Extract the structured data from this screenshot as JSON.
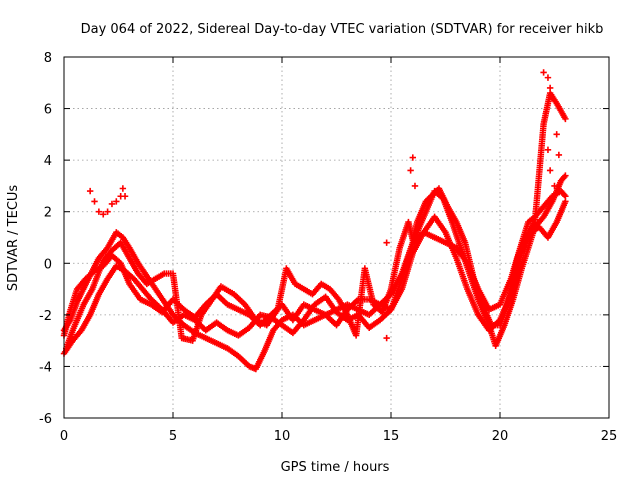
{
  "chart_data": {
    "type": "scatter",
    "title": "Day 064 of 2022, Sidereal Day-to-day VTEC variation (SDTVAR) for receiver hikb",
    "xlabel": "GPS time / hours",
    "ylabel": "SDTVAR / TECUs",
    "xlim": [
      0,
      25
    ],
    "ylim": [
      -6,
      8
    ],
    "xticks": [
      0,
      5,
      10,
      15,
      20,
      25
    ],
    "yticks": [
      -6,
      -4,
      -2,
      0,
      2,
      4,
      6,
      8
    ],
    "grid": true,
    "marker": "+",
    "color": "#ff0000",
    "series": [
      {
        "name": "track-a",
        "points": [
          [
            0,
            -2.6
          ],
          [
            0.3,
            -2.2
          ],
          [
            0.6,
            -1.5
          ],
          [
            1.0,
            -0.8
          ],
          [
            1.3,
            -0.3
          ],
          [
            1.6,
            0.2
          ],
          [
            2.0,
            0.6
          ],
          [
            2.4,
            1.2
          ],
          [
            2.7,
            1.0
          ],
          [
            3.0,
            0.6
          ],
          [
            3.4,
            0.0
          ],
          [
            3.8,
            -0.5
          ],
          [
            4.2,
            -1.0
          ],
          [
            4.6,
            -1.5
          ],
          [
            5.0,
            -2.0
          ],
          [
            5.5,
            -2.4
          ],
          [
            6.0,
            -2.7
          ],
          [
            6.5,
            -2.9
          ],
          [
            7.0,
            -3.1
          ],
          [
            7.5,
            -3.3
          ],
          [
            8.0,
            -3.6
          ],
          [
            8.5,
            -4.0
          ],
          [
            8.8,
            -4.1
          ],
          [
            9.2,
            -3.4
          ],
          [
            9.6,
            -2.6
          ],
          [
            10.0,
            -2.2
          ],
          [
            10.5,
            -2.0
          ],
          [
            11.0,
            -2.4
          ],
          [
            11.5,
            -2.2
          ],
          [
            12.0,
            -2.0
          ],
          [
            12.5,
            -1.8
          ],
          [
            13.0,
            -1.6
          ],
          [
            13.5,
            -1.8
          ],
          [
            14.0,
            -2.0
          ],
          [
            14.5,
            -1.6
          ],
          [
            15.0,
            -1.2
          ],
          [
            15.5,
            -0.4
          ],
          [
            16.0,
            0.8
          ],
          [
            16.5,
            1.8
          ],
          [
            17.0,
            2.8
          ],
          [
            17.4,
            2.5
          ],
          [
            17.8,
            1.6
          ],
          [
            18.2,
            0.6
          ],
          [
            18.6,
            -0.4
          ],
          [
            19.0,
            -1.4
          ],
          [
            19.5,
            -2.4
          ],
          [
            19.8,
            -3.2
          ],
          [
            20.2,
            -2.4
          ],
          [
            20.6,
            -1.4
          ],
          [
            21.0,
            -0.2
          ],
          [
            21.3,
            0.6
          ],
          [
            21.6,
            1.4
          ],
          [
            22.0,
            1.8
          ],
          [
            22.4,
            2.4
          ],
          [
            22.8,
            3.2
          ],
          [
            23.0,
            3.4
          ]
        ]
      },
      {
        "name": "track-b",
        "points": [
          [
            0,
            -3.5
          ],
          [
            0.4,
            -3.0
          ],
          [
            0.8,
            -2.6
          ],
          [
            1.2,
            -2.0
          ],
          [
            1.6,
            -1.2
          ],
          [
            2.0,
            -0.6
          ],
          [
            2.4,
            -0.1
          ],
          [
            2.8,
            -0.3
          ],
          [
            3.2,
            -0.6
          ],
          [
            3.6,
            -1.0
          ],
          [
            4.0,
            -1.4
          ],
          [
            4.5,
            -1.8
          ],
          [
            5.0,
            -2.3
          ],
          [
            5.5,
            -2.0
          ],
          [
            6.0,
            -2.2
          ],
          [
            6.5,
            -2.6
          ],
          [
            7.0,
            -2.3
          ],
          [
            7.5,
            -2.6
          ],
          [
            8.0,
            -2.8
          ],
          [
            8.5,
            -2.5
          ],
          [
            9.0,
            -2.0
          ],
          [
            9.5,
            -2.1
          ],
          [
            10.0,
            -2.4
          ],
          [
            10.5,
            -2.7
          ],
          [
            11.0,
            -2.2
          ],
          [
            11.5,
            -1.6
          ],
          [
            12.0,
            -1.3
          ],
          [
            12.5,
            -1.9
          ],
          [
            13.0,
            -2.2
          ],
          [
            13.5,
            -2.0
          ],
          [
            14.0,
            -2.5
          ],
          [
            14.5,
            -2.2
          ],
          [
            15.0,
            -1.8
          ],
          [
            15.5,
            -1.0
          ],
          [
            16.0,
            0.4
          ],
          [
            16.5,
            1.2
          ],
          [
            17.0,
            1.8
          ],
          [
            17.5,
            1.2
          ],
          [
            18.0,
            0.2
          ],
          [
            18.5,
            -1.0
          ],
          [
            19.0,
            -2.0
          ],
          [
            19.5,
            -2.6
          ],
          [
            20.0,
            -2.2
          ],
          [
            20.5,
            -1.2
          ],
          [
            21.0,
            0.4
          ],
          [
            21.4,
            1.2
          ],
          [
            21.8,
            1.4
          ],
          [
            22.2,
            1.0
          ],
          [
            22.6,
            1.6
          ],
          [
            23.0,
            2.4
          ]
        ]
      },
      {
        "name": "track-c",
        "points": [
          [
            0,
            -2.8
          ],
          [
            0.3,
            -1.8
          ],
          [
            0.6,
            -1.0
          ],
          [
            1.0,
            -0.6
          ],
          [
            1.4,
            -0.3
          ],
          [
            1.8,
            -0.1
          ],
          [
            2.2,
            0.3
          ],
          [
            2.6,
            0.0
          ],
          [
            3.0,
            -0.8
          ],
          [
            3.5,
            -1.4
          ],
          [
            4.0,
            -1.6
          ],
          [
            4.5,
            -1.9
          ],
          [
            5.0,
            -1.4
          ],
          [
            5.5,
            -1.8
          ],
          [
            6.0,
            -2.1
          ],
          [
            6.5,
            -1.6
          ],
          [
            7.0,
            -1.2
          ],
          [
            7.5,
            -1.6
          ],
          [
            8.0,
            -1.8
          ],
          [
            8.5,
            -2.0
          ],
          [
            9.0,
            -2.4
          ],
          [
            9.5,
            -2.0
          ],
          [
            10.0,
            -1.6
          ],
          [
            10.5,
            -2.2
          ],
          [
            11.0,
            -1.6
          ],
          [
            11.5,
            -1.8
          ],
          [
            12.0,
            -2.0
          ],
          [
            12.5,
            -2.4
          ],
          [
            13.0,
            -1.8
          ],
          [
            13.5,
            -1.4
          ],
          [
            14.0,
            -1.4
          ],
          [
            14.5,
            -1.6
          ],
          [
            15.0,
            -1.8
          ],
          [
            15.5,
            -0.6
          ],
          [
            16.0,
            0.8
          ],
          [
            16.5,
            1.2
          ],
          [
            17.0,
            1.0
          ],
          [
            17.5,
            0.8
          ],
          [
            18.0,
            0.6
          ],
          [
            18.5,
            0.0
          ],
          [
            19.0,
            -1.0
          ],
          [
            19.5,
            -1.8
          ],
          [
            20.0,
            -1.6
          ],
          [
            20.5,
            -0.6
          ],
          [
            21.0,
            0.8
          ],
          [
            21.3,
            1.6
          ],
          [
            21.6,
            1.8
          ],
          [
            22.0,
            2.2
          ],
          [
            22.4,
            2.6
          ],
          [
            22.8,
            2.8
          ],
          [
            23.0,
            2.6
          ]
        ]
      },
      {
        "name": "track-d",
        "points": [
          [
            0.1,
            -3.3
          ],
          [
            0.4,
            -2.6
          ],
          [
            0.9,
            -1.6
          ],
          [
            1.3,
            -1.0
          ],
          [
            1.8,
            0.1
          ],
          [
            2.2,
            0.5
          ],
          [
            2.6,
            0.8
          ],
          [
            3.0,
            0.2
          ],
          [
            3.4,
            -0.4
          ],
          [
            3.8,
            -0.8
          ],
          [
            4.2,
            -0.6
          ],
          [
            4.6,
            -0.4
          ],
          [
            5.0,
            -0.4
          ],
          [
            5.4,
            -2.9
          ],
          [
            5.9,
            -3.0
          ],
          [
            6.3,
            -2.0
          ],
          [
            6.8,
            -1.4
          ],
          [
            7.2,
            -0.9
          ],
          [
            7.8,
            -1.2
          ],
          [
            8.3,
            -1.6
          ],
          [
            8.8,
            -2.2
          ],
          [
            9.3,
            -2.4
          ],
          [
            9.8,
            -1.8
          ],
          [
            10.2,
            -0.2
          ],
          [
            10.6,
            -0.8
          ],
          [
            11.0,
            -1.0
          ],
          [
            11.4,
            -1.2
          ],
          [
            11.8,
            -0.8
          ],
          [
            12.2,
            -1.0
          ],
          [
            12.6,
            -1.4
          ],
          [
            13.0,
            -2.0
          ],
          [
            13.4,
            -2.8
          ],
          [
            13.8,
            -0.2
          ],
          [
            14.2,
            -1.6
          ],
          [
            14.6,
            -1.9
          ],
          [
            15.0,
            -1.0
          ],
          [
            15.4,
            0.6
          ],
          [
            15.8,
            1.6
          ],
          [
            16.0,
            0.9
          ],
          [
            16.2,
            1.6
          ],
          [
            16.6,
            2.4
          ],
          [
            17.2,
            2.9
          ],
          [
            17.6,
            2.2
          ],
          [
            18.0,
            1.6
          ],
          [
            18.4,
            0.8
          ],
          [
            18.8,
            -0.6
          ],
          [
            19.2,
            -1.6
          ],
          [
            19.6,
            -2.4
          ],
          [
            20.0,
            -2.4
          ],
          [
            20.4,
            -1.4
          ],
          [
            20.8,
            0.2
          ],
          [
            21.2,
            1.0
          ],
          [
            21.6,
            1.6
          ],
          [
            22.0,
            5.4
          ],
          [
            22.3,
            6.6
          ],
          [
            22.6,
            6.2
          ],
          [
            23.0,
            5.6
          ]
        ]
      },
      {
        "name": "isolated-bursts",
        "points": [
          [
            1.2,
            2.8
          ],
          [
            1.4,
            2.4
          ],
          [
            1.6,
            2.0
          ],
          [
            1.8,
            1.9
          ],
          [
            2.0,
            2.0
          ],
          [
            2.2,
            2.3
          ],
          [
            2.4,
            2.4
          ],
          [
            2.6,
            2.6
          ],
          [
            2.7,
            2.9
          ],
          [
            2.8,
            2.6
          ],
          [
            14.8,
            0.8
          ],
          [
            14.8,
            -2.9
          ],
          [
            15.9,
            3.6
          ],
          [
            16.0,
            4.1
          ],
          [
            16.1,
            3.0
          ],
          [
            22.0,
            7.4
          ],
          [
            22.2,
            7.2
          ],
          [
            22.3,
            6.8
          ],
          [
            22.4,
            6.4
          ],
          [
            22.6,
            5.0
          ],
          [
            22.7,
            4.2
          ],
          [
            22.5,
            3.0
          ],
          [
            22.3,
            3.6
          ],
          [
            22.2,
            4.4
          ],
          [
            22.1,
            5.8
          ]
        ]
      }
    ]
  }
}
